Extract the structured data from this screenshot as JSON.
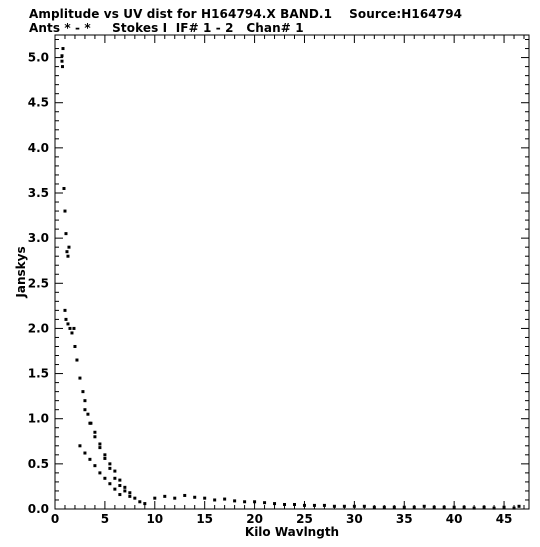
{
  "header": {
    "line1": "Amplitude vs UV dist for H164794.X BAND.1    Source:H164794",
    "line2": "Ants * - *     Stokes I  IF# 1 - 2   Chan# 1"
  },
  "chart_data": {
    "type": "scatter",
    "xlabel": "Kilo Wavlngth",
    "ylabel": "Janskys",
    "xlim": [
      0,
      47.5
    ],
    "ylim": [
      0,
      5.25
    ],
    "xticks": [
      0,
      5,
      10,
      15,
      20,
      25,
      30,
      35,
      40,
      45
    ],
    "yticks": [
      0.0,
      0.5,
      1.0,
      1.5,
      2.0,
      2.5,
      3.0,
      3.5,
      4.0,
      4.5,
      5.0
    ],
    "xtick_labels": [
      "0",
      "5",
      "10",
      "15",
      "20",
      "25",
      "30",
      "35",
      "40",
      "45"
    ],
    "ytick_labels": [
      "0.0",
      "0.5",
      "1.0",
      "1.5",
      "2.0",
      "2.5",
      "3.0",
      "3.5",
      "4.0",
      "4.5",
      "5.0"
    ],
    "grid": false,
    "marker_color": "#000000",
    "series": [
      {
        "points": [
          [
            0.7,
            4.96
          ],
          [
            0.7,
            5.02
          ],
          [
            0.75,
            4.9
          ],
          [
            0.8,
            5.1
          ],
          [
            0.9,
            3.55
          ],
          [
            1.0,
            3.3
          ],
          [
            1.1,
            3.05
          ],
          [
            1.2,
            2.85
          ],
          [
            1.3,
            2.8
          ],
          [
            1.4,
            2.9
          ],
          [
            1.0,
            2.2
          ],
          [
            1.1,
            2.1
          ],
          [
            1.3,
            2.05
          ],
          [
            1.5,
            2.0
          ],
          [
            1.7,
            1.95
          ],
          [
            1.9,
            2.0
          ],
          [
            2.0,
            1.8
          ],
          [
            2.2,
            1.65
          ],
          [
            2.5,
            1.45
          ],
          [
            2.8,
            1.3
          ],
          [
            3.0,
            1.2
          ],
          [
            3.3,
            1.05
          ],
          [
            3.6,
            0.95
          ],
          [
            4.0,
            0.8
          ],
          [
            4.5,
            0.68
          ],
          [
            5.0,
            0.56
          ],
          [
            5.5,
            0.45
          ],
          [
            6.0,
            0.34
          ],
          [
            6.5,
            0.26
          ],
          [
            7.0,
            0.2
          ],
          [
            7.5,
            0.14
          ],
          [
            3.0,
            1.1
          ],
          [
            3.5,
            0.95
          ],
          [
            4.0,
            0.85
          ],
          [
            4.5,
            0.72
          ],
          [
            5.0,
            0.6
          ],
          [
            5.5,
            0.5
          ],
          [
            6.0,
            0.42
          ],
          [
            6.5,
            0.32
          ],
          [
            7.0,
            0.24
          ],
          [
            7.5,
            0.18
          ],
          [
            8.0,
            0.12
          ],
          [
            8.5,
            0.08
          ],
          [
            9.0,
            0.06
          ],
          [
            2.5,
            0.7
          ],
          [
            3.0,
            0.62
          ],
          [
            3.5,
            0.55
          ],
          [
            4.0,
            0.48
          ],
          [
            4.5,
            0.4
          ],
          [
            5.0,
            0.34
          ],
          [
            5.5,
            0.28
          ],
          [
            6.0,
            0.22
          ],
          [
            6.5,
            0.16
          ],
          [
            10.0,
            0.12
          ],
          [
            11.0,
            0.14
          ],
          [
            12.0,
            0.12
          ],
          [
            13.0,
            0.15
          ],
          [
            14.0,
            0.13
          ],
          [
            15.0,
            0.12
          ],
          [
            16.0,
            0.1
          ],
          [
            17.0,
            0.11
          ],
          [
            18.0,
            0.09
          ],
          [
            19.0,
            0.08
          ],
          [
            20.0,
            0.08
          ],
          [
            21.0,
            0.07
          ],
          [
            22.0,
            0.06
          ],
          [
            23.0,
            0.05
          ],
          [
            24.0,
            0.05
          ],
          [
            25.0,
            0.04
          ],
          [
            26.0,
            0.04
          ],
          [
            27.0,
            0.04
          ],
          [
            28.0,
            0.03
          ],
          [
            29.0,
            0.03
          ],
          [
            30.0,
            0.03
          ],
          [
            31.0,
            0.03
          ],
          [
            32.0,
            0.02
          ],
          [
            33.0,
            0.02
          ],
          [
            34.0,
            0.02
          ],
          [
            35.0,
            0.02
          ],
          [
            36.0,
            0.02
          ],
          [
            37.0,
            0.03
          ],
          [
            38.0,
            0.02
          ],
          [
            39.0,
            0.02
          ],
          [
            40.0,
            0.02
          ],
          [
            41.0,
            0.02
          ],
          [
            42.0,
            0.01
          ],
          [
            43.0,
            0.02
          ],
          [
            44.0,
            0.01
          ],
          [
            45.0,
            0.02
          ],
          [
            46.0,
            0.01
          ],
          [
            46.5,
            0.03
          ]
        ]
      }
    ]
  }
}
